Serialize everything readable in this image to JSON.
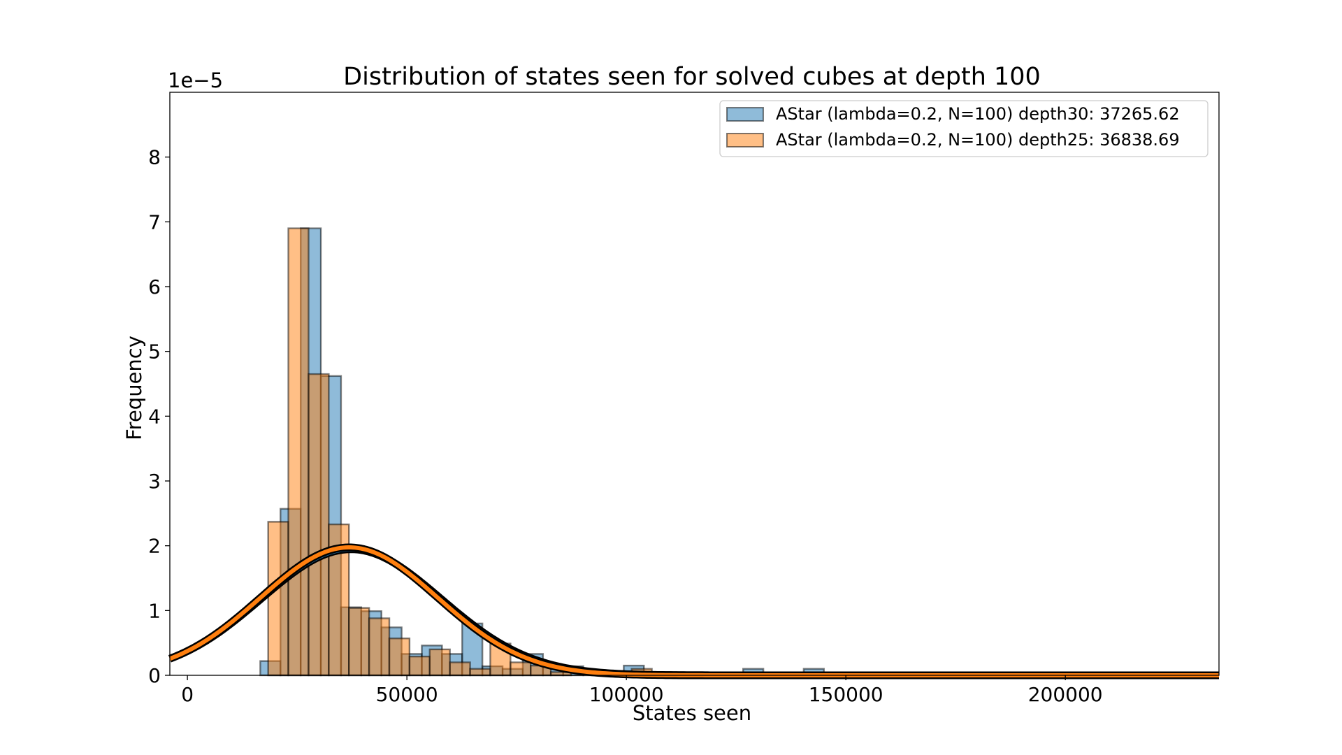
{
  "chart_data": {
    "type": "bar",
    "title": "Distribution of states seen for solved cubes at depth 100",
    "xlabel": "States seen",
    "ylabel": "Frequency",
    "y_scale_label": "1e−5",
    "xlim": [
      -4000,
      235000
    ],
    "ylim": [
      0,
      9.0
    ],
    "x_ticks": [
      0,
      50000,
      100000,
      150000,
      200000
    ],
    "x_tick_labels": [
      "0",
      "50000",
      "100000",
      "150000",
      "200000"
    ],
    "y_ticks": [
      0,
      1,
      2,
      3,
      4,
      5,
      6,
      7,
      8
    ],
    "y_tick_labels": [
      "0",
      "1",
      "2",
      "3",
      "4",
      "5",
      "6",
      "7",
      "8"
    ],
    "bin_width": 4600,
    "legend_position": "top-right",
    "series": [
      {
        "name": "AStar (lambda=0.2, N=100) depth30: 37265.62",
        "color": "#1f77b4",
        "mean": 37265.62,
        "std": 20500,
        "bins": [
          [
            16600,
            0.22
          ],
          [
            21200,
            2.57
          ],
          [
            25800,
            6.9
          ],
          [
            30400,
            4.62
          ],
          [
            35000,
            1.05
          ],
          [
            39600,
            0.99
          ],
          [
            44200,
            0.74
          ],
          [
            48800,
            0.33
          ],
          [
            53400,
            0.46
          ],
          [
            58000,
            0.33
          ],
          [
            62600,
            0.8
          ],
          [
            67200,
            0.14
          ],
          [
            71800,
            0.1
          ],
          [
            76400,
            0.33
          ],
          [
            81000,
            0.15
          ],
          [
            85600,
            0.14
          ],
          [
            90200,
            0.05
          ],
          [
            99400,
            0.15
          ],
          [
            126600,
            0.1
          ],
          [
            140400,
            0.1
          ]
        ]
      },
      {
        "name": "AStar (lambda=0.2, N=100) depth25: 36838.69",
        "color": "#ff7f0e",
        "mean": 36838.69,
        "std": 20200,
        "bins": [
          [
            18400,
            2.37
          ],
          [
            23000,
            6.9
          ],
          [
            27600,
            4.65
          ],
          [
            32200,
            2.33
          ],
          [
            36800,
            1.04
          ],
          [
            41400,
            0.88
          ],
          [
            46000,
            0.57
          ],
          [
            50600,
            0.29
          ],
          [
            55200,
            0.4
          ],
          [
            59800,
            0.2
          ],
          [
            64400,
            0.1
          ],
          [
            69000,
            0.49
          ],
          [
            73600,
            0.2
          ],
          [
            78200,
            0.15
          ],
          [
            82800,
            0.05
          ],
          [
            101200,
            0.1
          ]
        ]
      }
    ]
  }
}
